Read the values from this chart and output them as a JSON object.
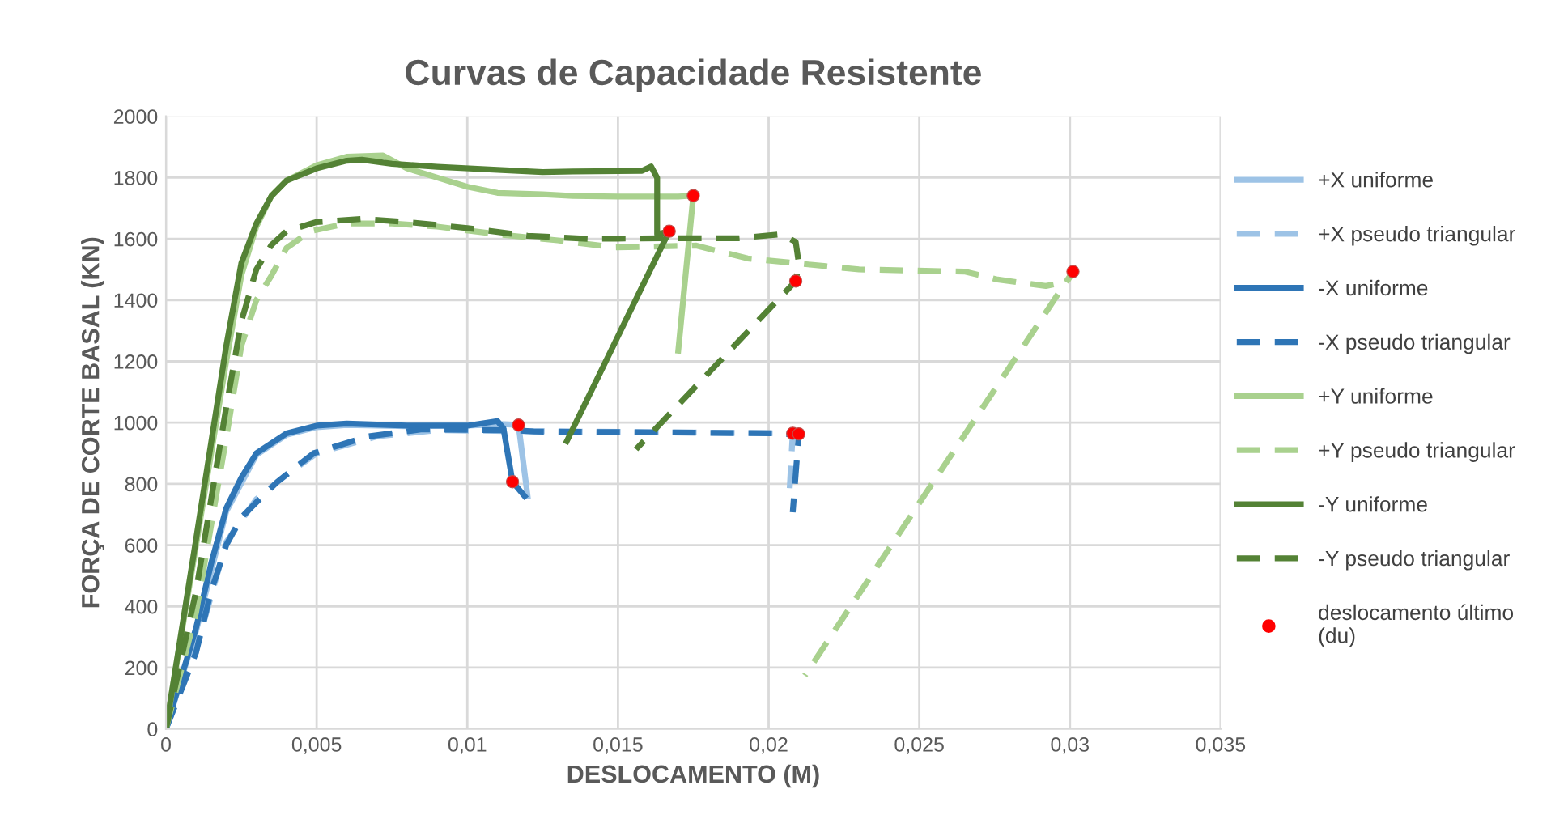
{
  "chart_data": {
    "type": "line",
    "title": "Curvas de Capacidade Resistente",
    "xlabel": "DESLOCAMENTO (M)",
    "ylabel": "FORÇA DE CORTE BASAL (KN)",
    "xlim": [
      0,
      0.035
    ],
    "ylim": [
      0,
      2000
    ],
    "xticks": [
      0,
      {
        "value": 0.005,
        "label": "0,005"
      },
      {
        "value": 0.01,
        "label": "0,01"
      },
      {
        "value": 0.015,
        "label": "0,015"
      },
      {
        "value": 0.02,
        "label": "0,02"
      },
      {
        "value": 0.025,
        "label": "0,025"
      },
      {
        "value": 0.03,
        "label": "0,03"
      },
      {
        "value": 0.035,
        "label": "0,035"
      }
    ],
    "yticks": [
      0,
      200,
      400,
      600,
      800,
      1000,
      1200,
      1400,
      1600,
      1800,
      2000
    ],
    "grid": true,
    "legend": "right",
    "marker": "none",
    "series": [
      {
        "name": "+X uniforme",
        "color": "#9dc3e6",
        "line_style": "solid",
        "x": [
          0,
          0.001,
          0.002,
          0.003,
          0.004,
          0.005,
          0.006,
          0.008,
          0.01,
          0.0112,
          0.0117,
          0.012
        ],
        "values": [
          0,
          320,
          710,
          895,
          960,
          985,
          992,
          988,
          990,
          995,
          992,
          760
        ]
      },
      {
        "name": "+X pseudo triangular",
        "color": "#9dc3e6",
        "line_style": "dashed",
        "x": [
          0,
          0.001,
          0.002,
          0.003,
          0.004,
          0.005,
          0.007,
          0.009,
          0.012,
          0.0208,
          0.0207
        ],
        "values": [
          0,
          260,
          610,
          750,
          830,
          900,
          955,
          975,
          972,
          965,
          786
        ]
      },
      {
        "name": "-X uniforme",
        "color": "#2e75b6",
        "line_style": "solid",
        "x": [
          0,
          0.001,
          0.0015,
          0.002,
          0.0025,
          0.003,
          0.004,
          0.005,
          0.006,
          0.008,
          0.01,
          0.011,
          0.0112,
          0.0115,
          0.0119
        ],
        "values": [
          0,
          330,
          540,
          720,
          820,
          900,
          965,
          990,
          997,
          990,
          990,
          1005,
          981,
          807,
          760
        ]
      },
      {
        "name": "-X pseudo triangular",
        "color": "#2e75b6",
        "line_style": "dashed",
        "x": [
          0,
          0.001,
          0.0015,
          0.002,
          0.0025,
          0.003,
          0.0037,
          0.0049,
          0.0067,
          0.0085,
          0.0115,
          0.0122,
          0.0202,
          0.021,
          0.0208
        ],
        "values": [
          0,
          250,
          450,
          600,
          690,
          740,
          807,
          900,
          955,
          978,
          975,
          971,
          965,
          960,
          707
        ]
      },
      {
        "name": "+Y uniforme",
        "color": "#a9d18e",
        "line_style": "solid",
        "x": [
          0,
          0.001,
          0.002,
          0.0025,
          0.003,
          0.0035,
          0.004,
          0.005,
          0.006,
          0.0072,
          0.008,
          0.009,
          0.01,
          0.011,
          0.0125,
          0.0135,
          0.015,
          0.017,
          0.0175,
          0.017
        ],
        "values": [
          0,
          600,
          1200,
          1480,
          1640,
          1740,
          1790,
          1840,
          1868,
          1872,
          1830,
          1800,
          1770,
          1750,
          1745,
          1740,
          1738,
          1738,
          1741,
          1235
        ]
      },
      {
        "name": "+Y pseudo triangular",
        "color": "#a9d18e",
        "line_style": "dashed",
        "x": [
          0,
          0.001,
          0.002,
          0.0025,
          0.003,
          0.0035,
          0.004,
          0.0048,
          0.006,
          0.0075,
          0.009,
          0.011,
          0.013,
          0.0149,
          0.0176,
          0.0193,
          0.023,
          0.0265,
          0.0276,
          0.0292,
          0.0299,
          0.0301,
          0.0212
        ],
        "values": [
          0,
          380,
          950,
          1250,
          1400,
          1480,
          1570,
          1625,
          1650,
          1650,
          1640,
          1615,
          1595,
          1572,
          1578,
          1536,
          1500,
          1493,
          1467,
          1446,
          1460,
          1493,
          174
        ]
      },
      {
        "name": "-Y uniforme",
        "color": "#548235",
        "line_style": "solid",
        "x": [
          0,
          0.001,
          0.002,
          0.0025,
          0.003,
          0.0035,
          0.004,
          0.005,
          0.006,
          0.0065,
          0.0075,
          0.009,
          0.011,
          0.0125,
          0.0135,
          0.0158,
          0.0161,
          0.0163,
          0.0163,
          0.0167,
          0.0133
        ],
        "values": [
          0,
          620,
          1250,
          1520,
          1650,
          1740,
          1790,
          1830,
          1855,
          1858,
          1845,
          1835,
          1825,
          1818,
          1820,
          1822,
          1836,
          1799,
          1615,
          1625,
          939
        ]
      },
      {
        "name": "-Y pseudo triangular",
        "color": "#548235",
        "line_style": "dashed",
        "x": [
          0,
          0.001,
          0.002,
          0.0025,
          0.003,
          0.0035,
          0.004,
          0.005,
          0.0065,
          0.008,
          0.01,
          0.012,
          0.014,
          0.0165,
          0.019,
          0.0204,
          0.0209,
          0.021,
          0.0209,
          0.0156
        ],
        "values": [
          0,
          450,
          1050,
          1330,
          1500,
          1580,
          1625,
          1655,
          1665,
          1655,
          1635,
          1610,
          1600,
          1602,
          1602,
          1615,
          1590,
          1520,
          1462,
          913
        ]
      },
      {
        "name": "deslocamento último (du)",
        "type": "scatter",
        "marker": "circle",
        "color": "#ff0000",
        "x": [
          0.0167,
          0.0175,
          0.0209,
          0.0301,
          0.0117,
          0.0115,
          0.0208,
          0.021
        ],
        "values": [
          1625,
          1741,
          1462,
          1493,
          992,
          807,
          965,
          963
        ]
      }
    ]
  }
}
